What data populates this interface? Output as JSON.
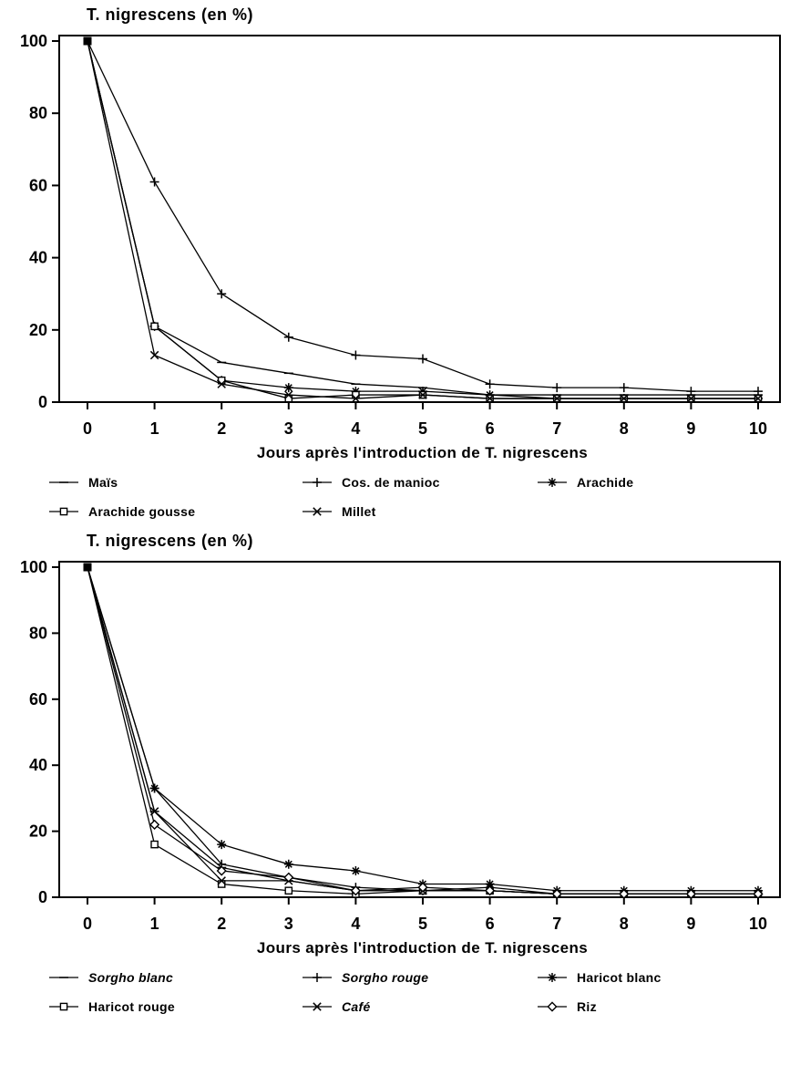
{
  "page": {
    "background": "#ffffff",
    "ink": "#000000"
  },
  "chart_data": [
    {
      "type": "line",
      "title": "T. nigrescens (en %)",
      "xlabel": "Jours après l'introduction de T. nigrescens",
      "x": [
        0,
        1,
        2,
        3,
        4,
        5,
        6,
        7,
        8,
        9,
        10
      ],
      "xlim": [
        0,
        10
      ],
      "ylim": [
        0,
        100
      ],
      "xticks": [
        0,
        1,
        2,
        3,
        4,
        5,
        6,
        7,
        8,
        9,
        10
      ],
      "yticks": [
        0,
        20,
        40,
        60,
        80,
        100
      ],
      "grid": false,
      "legend_position": "bottom",
      "series": [
        {
          "name": "Maïs",
          "marker": "dash",
          "italic": false,
          "values": [
            100,
            21,
            11,
            8,
            5,
            4,
            2,
            2,
            2,
            2,
            2
          ]
        },
        {
          "name": "Cos. de manioc",
          "marker": "plus",
          "italic": false,
          "values": [
            100,
            61,
            30,
            18,
            13,
            12,
            5,
            4,
            4,
            3,
            3
          ]
        },
        {
          "name": "Arachide",
          "marker": "asterisk",
          "italic": false,
          "values": [
            100,
            21,
            6,
            4,
            3,
            3,
            2,
            1,
            1,
            1,
            1
          ]
        },
        {
          "name": "Arachide gousse",
          "marker": "square",
          "italic": false,
          "values": [
            100,
            21,
            6,
            1,
            2,
            2,
            1,
            1,
            1,
            1,
            1
          ]
        },
        {
          "name": "Millet",
          "marker": "x",
          "italic": false,
          "values": [
            100,
            13,
            5,
            2,
            1,
            2,
            1,
            1,
            1,
            1,
            1
          ]
        }
      ]
    },
    {
      "type": "line",
      "title": "T. nigrescens (en %)",
      "xlabel": "Jours après l'introduction de T. nigrescens",
      "x": [
        0,
        1,
        2,
        3,
        4,
        5,
        6,
        7,
        8,
        9,
        10
      ],
      "xlim": [
        0,
        10
      ],
      "ylim": [
        0,
        100
      ],
      "xticks": [
        0,
        1,
        2,
        3,
        4,
        5,
        6,
        7,
        8,
        9,
        10
      ],
      "yticks": [
        0,
        20,
        40,
        60,
        80,
        100
      ],
      "grid": false,
      "legend_position": "bottom",
      "series": [
        {
          "name": "Sorgho blanc",
          "marker": "dash",
          "italic": true,
          "values": [
            100,
            26,
            9,
            5,
            2,
            2,
            2,
            1,
            1,
            1,
            1
          ]
        },
        {
          "name": "Sorgho rouge",
          "marker": "plus",
          "italic": true,
          "values": [
            100,
            33,
            10,
            6,
            3,
            2,
            2,
            1,
            1,
            1,
            1
          ]
        },
        {
          "name": "Haricot blanc",
          "marker": "asterisk",
          "italic": false,
          "values": [
            100,
            33,
            16,
            10,
            8,
            4,
            4,
            2,
            2,
            2,
            2
          ]
        },
        {
          "name": "Haricot rouge",
          "marker": "square",
          "italic": false,
          "values": [
            100,
            16,
            4,
            2,
            1,
            2,
            2,
            1,
            1,
            1,
            1
          ]
        },
        {
          "name": "Café",
          "marker": "x",
          "italic": true,
          "values": [
            100,
            26,
            5,
            5,
            2,
            2,
            3,
            1,
            1,
            1,
            1
          ]
        },
        {
          "name": "Riz",
          "marker": "diamond",
          "italic": false,
          "values": [
            100,
            22,
            8,
            6,
            2,
            3,
            2,
            1,
            1,
            1,
            1
          ]
        }
      ]
    }
  ]
}
